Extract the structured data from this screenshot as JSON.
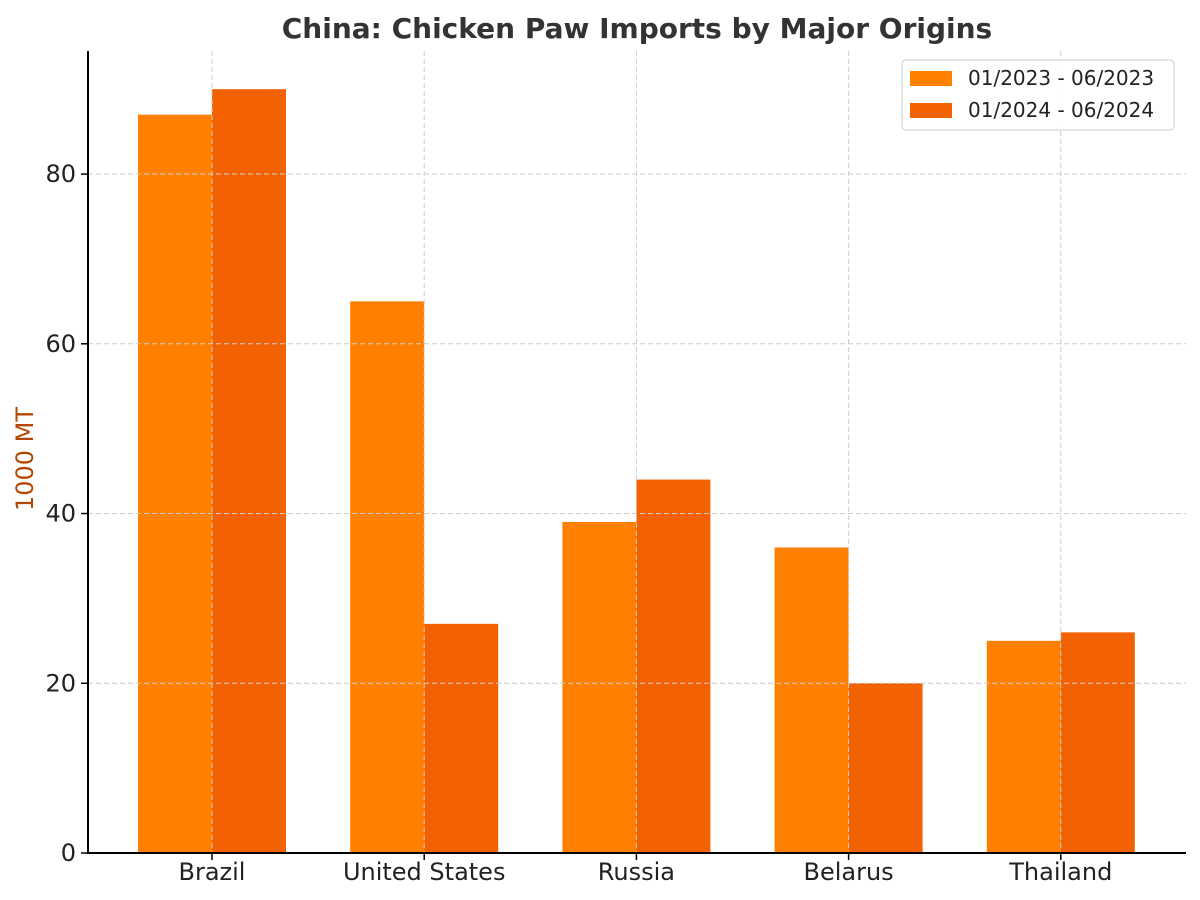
{
  "chart_data": {
    "type": "bar",
    "title": "China: Chicken Paw Imports by Major Origins",
    "xlabel": "",
    "ylabel": "1000 MT",
    "categories": [
      "Brazil",
      "United States",
      "Russia",
      "Belarus",
      "Thailand"
    ],
    "series": [
      {
        "name": "01/2023 - 06/2023",
        "values": [
          87,
          65,
          39,
          36,
          25
        ],
        "color": "#ff8000"
      },
      {
        "name": "01/2024 - 06/2024",
        "values": [
          90,
          27,
          44,
          20,
          26
        ],
        "color": "#f26202"
      }
    ],
    "ylim": [
      0,
      94.5
    ],
    "yticks": [
      0,
      20,
      40,
      60,
      80
    ],
    "grid": true,
    "legend_position": "top-right",
    "ylabel_color": "#b34700"
  }
}
